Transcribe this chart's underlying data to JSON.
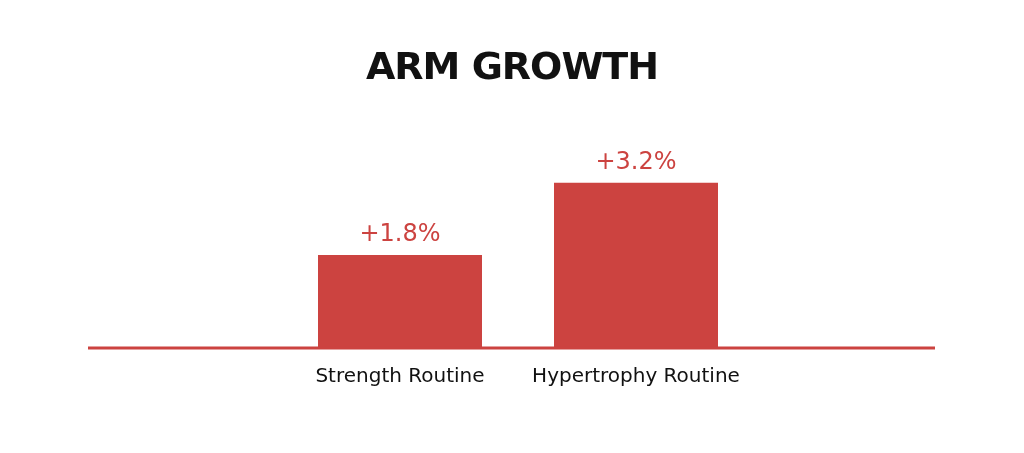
{
  "chart_data": {
    "type": "bar",
    "title": "ARM GROWTH",
    "categories": [
      "Strength Routine",
      "Hypertrophy Routine"
    ],
    "values": [
      1.8,
      3.2
    ],
    "value_labels": [
      "+1.8%",
      "+3.2%"
    ],
    "color": "#cc4340",
    "grid": false,
    "legend": false
  }
}
